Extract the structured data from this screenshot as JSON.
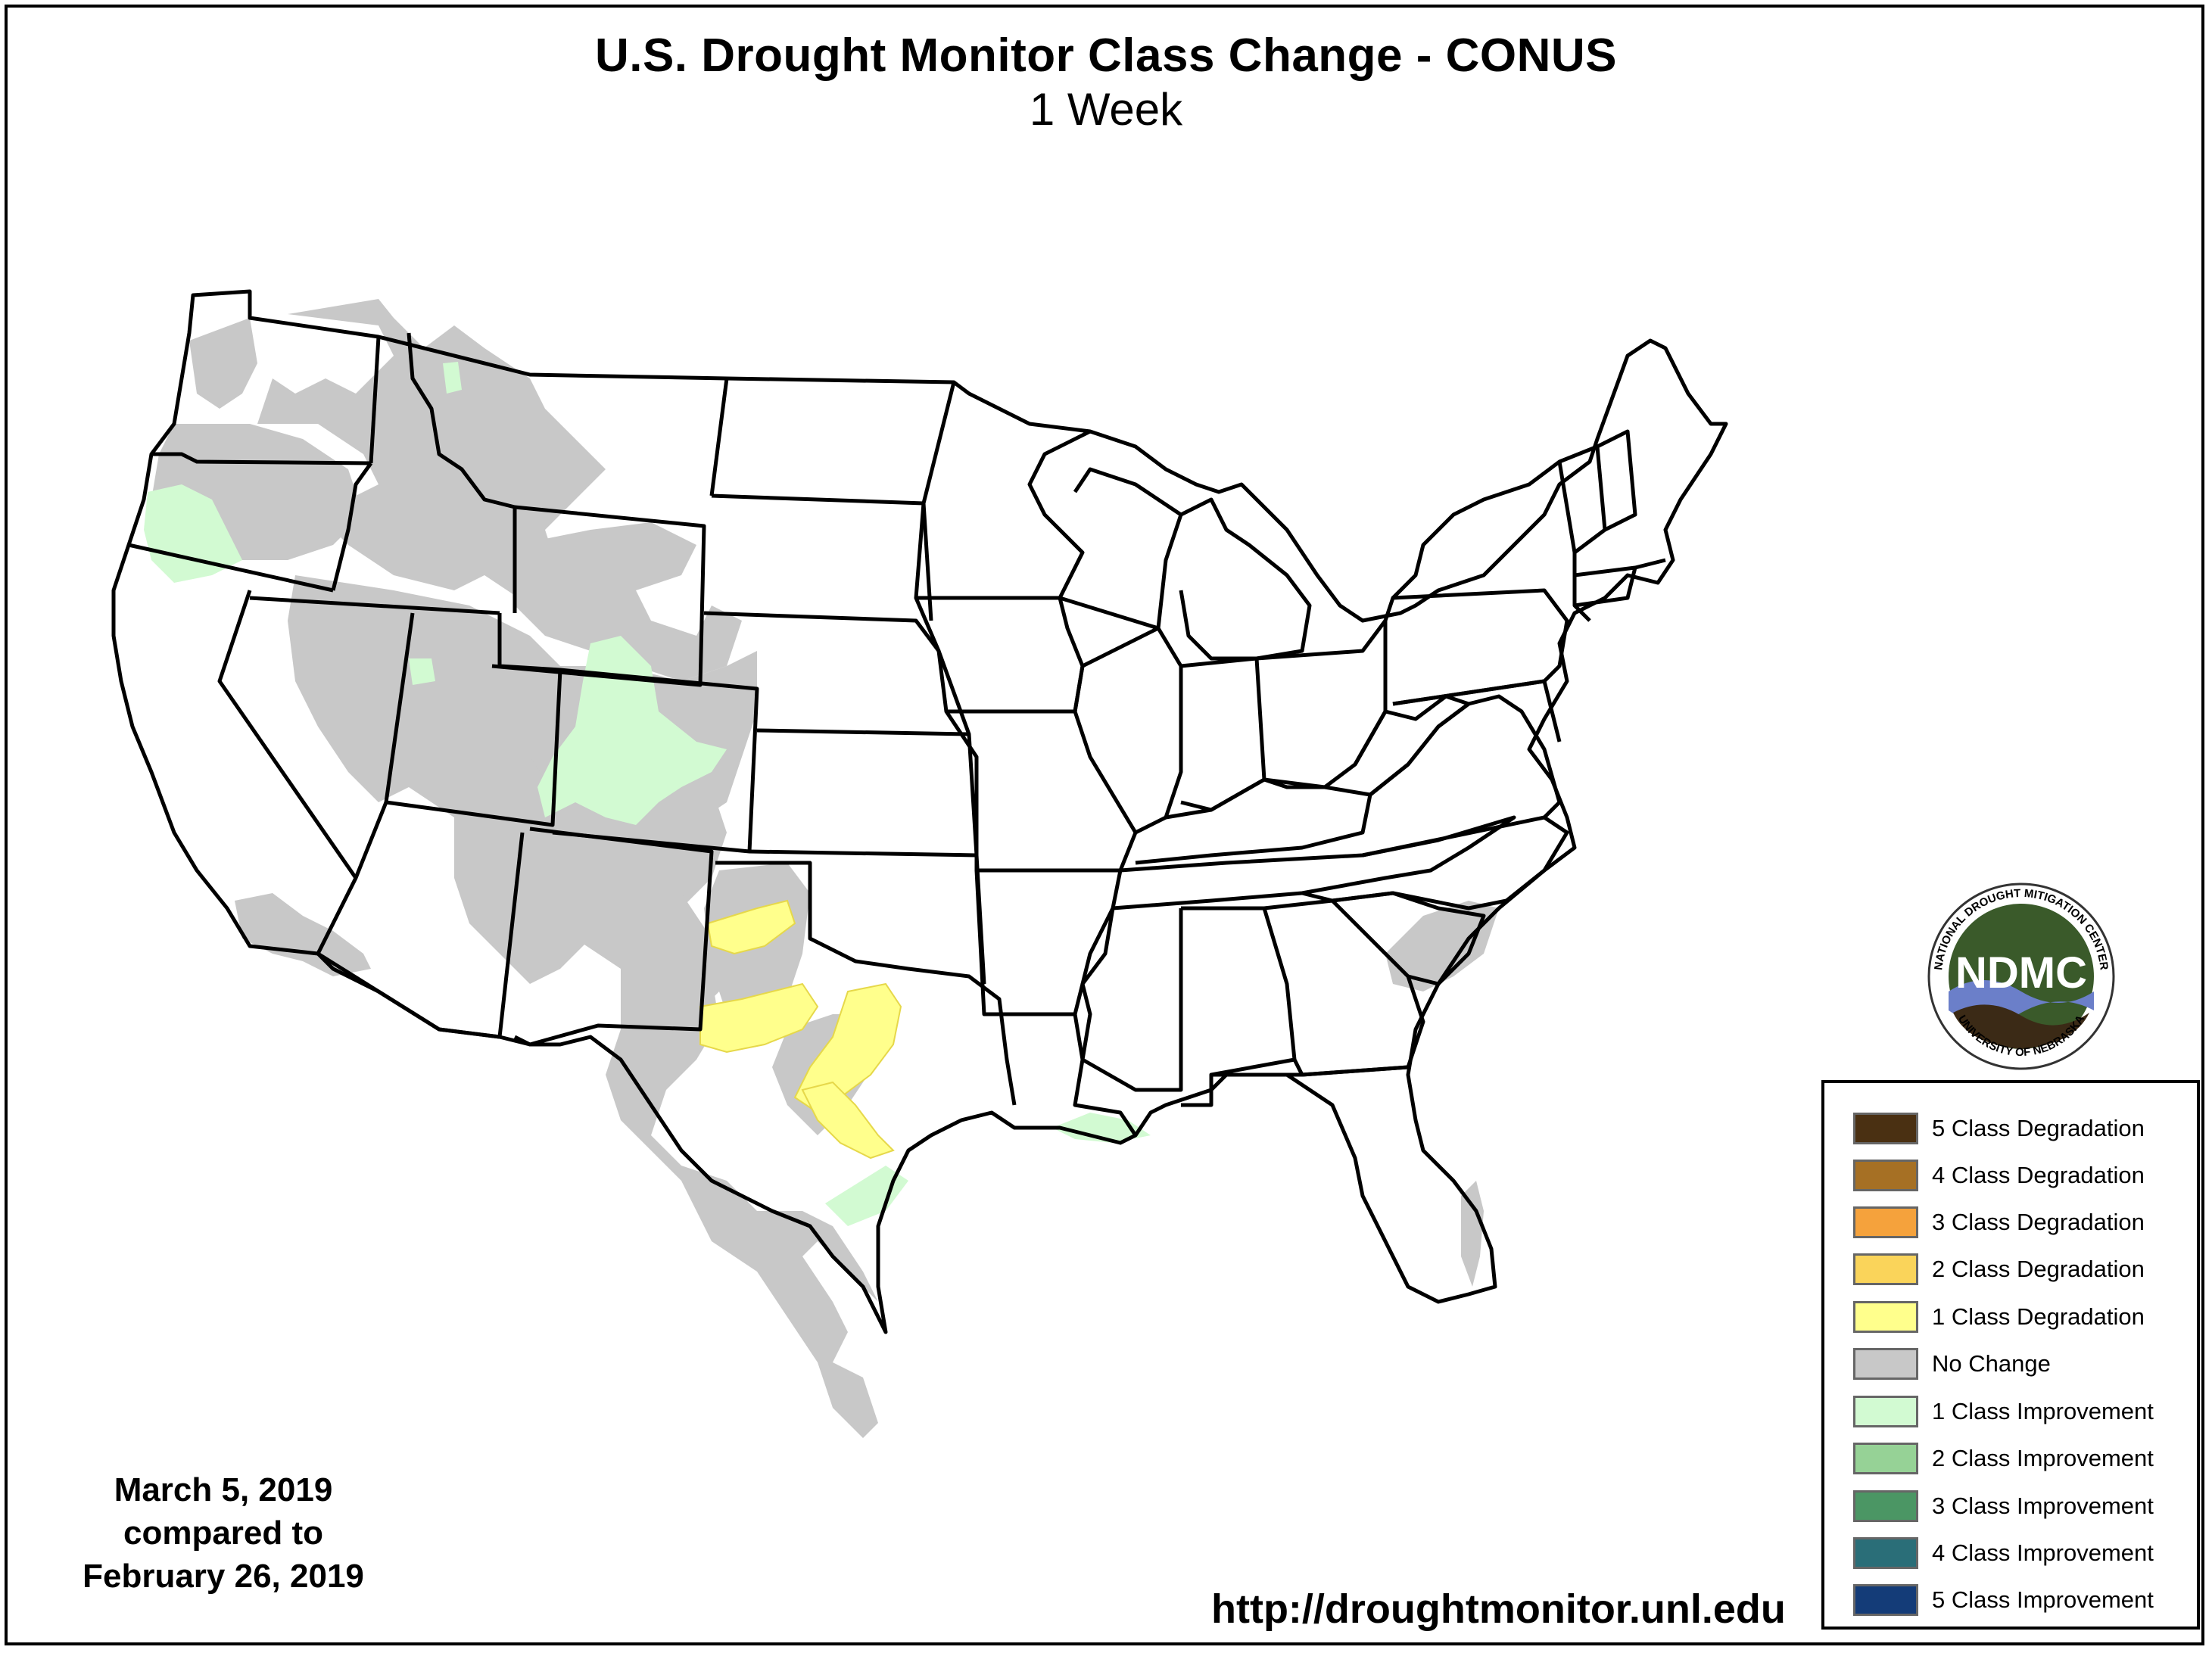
{
  "header": {
    "title": "U.S. Drought Monitor Class Change - CONUS",
    "subtitle": "1 Week"
  },
  "dates": {
    "current": "March 5, 2019",
    "connector": "compared to",
    "previous": "February 26, 2019"
  },
  "source_url": "http://droughtmonitor.unl.edu",
  "logo": {
    "text": "NDMC",
    "ring_top": "NATIONAL DROUGHT MITIGATION CENTER",
    "ring_bottom": "UNIVERSITY OF NEBRASKA"
  },
  "legend": [
    {
      "label": "5 Class Degradation",
      "color": "#4a3012"
    },
    {
      "label": "4 Class Degradation",
      "color": "#a67024"
    },
    {
      "label": "3 Class Degradation",
      "color": "#f5a23c"
    },
    {
      "label": "2 Class Degradation",
      "color": "#fad45a"
    },
    {
      "label": "1 Class Degradation",
      "color": "#ffff8c"
    },
    {
      "label": "No Change",
      "color": "#c8c8c8"
    },
    {
      "label": "1 Class Improvement",
      "color": "#d2fad2"
    },
    {
      "label": "2 Class Improvement",
      "color": "#96d296"
    },
    {
      "label": "3 Class Improvement",
      "color": "#4b9664"
    },
    {
      "label": "4 Class Improvement",
      "color": "#2a6e78"
    },
    {
      "label": "5 Class Improvement",
      "color": "#143c78"
    }
  ]
}
